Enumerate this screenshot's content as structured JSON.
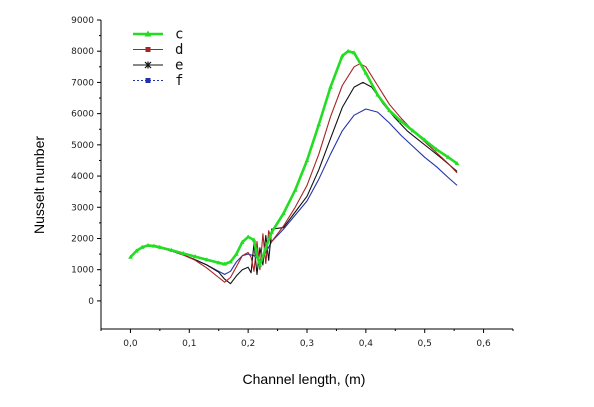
{
  "chart_data": {
    "type": "line",
    "title": "",
    "xlabel": "Channel length, (m)",
    "ylabel": "Nusselt number",
    "xlim": [
      -0.05,
      0.65
    ],
    "ylim": [
      -900,
      9000
    ],
    "x_ticks": [
      {
        "value": 0.0,
        "label": "0,0"
      },
      {
        "value": 0.1,
        "label": "0,1"
      },
      {
        "value": 0.2,
        "label": "0,2"
      },
      {
        "value": 0.3,
        "label": "0,3"
      },
      {
        "value": 0.4,
        "label": "0,4"
      },
      {
        "value": 0.5,
        "label": "0,5"
      },
      {
        "value": 0.6,
        "label": "0,6"
      }
    ],
    "y_ticks": [
      {
        "value": 0,
        "label": "0"
      },
      {
        "value": 1000,
        "label": "1000"
      },
      {
        "value": 2000,
        "label": "2000"
      },
      {
        "value": 3000,
        "label": "3000"
      },
      {
        "value": 4000,
        "label": "4000"
      },
      {
        "value": 5000,
        "label": "5000"
      },
      {
        "value": 6000,
        "label": "6000"
      },
      {
        "value": 7000,
        "label": "7000"
      },
      {
        "value": 8000,
        "label": "8000"
      },
      {
        "value": 9000,
        "label": "9000"
      }
    ],
    "grid": false,
    "legend_position": "top-left",
    "series": [
      {
        "name": "c",
        "color": "#22dd22",
        "marker": "triangle",
        "points": [
          [
            0.0,
            1400
          ],
          [
            0.01,
            1600
          ],
          [
            0.02,
            1720
          ],
          [
            0.03,
            1780
          ],
          [
            0.04,
            1760
          ],
          [
            0.05,
            1720
          ],
          [
            0.07,
            1620
          ],
          [
            0.09,
            1520
          ],
          [
            0.11,
            1420
          ],
          [
            0.13,
            1320
          ],
          [
            0.15,
            1220
          ],
          [
            0.16,
            1180
          ],
          [
            0.17,
            1250
          ],
          [
            0.18,
            1500
          ],
          [
            0.19,
            1880
          ],
          [
            0.2,
            2050
          ],
          [
            0.21,
            1950
          ],
          [
            0.215,
            1450
          ],
          [
            0.22,
            1150
          ],
          [
            0.23,
            1700
          ],
          [
            0.24,
            2200
          ],
          [
            0.26,
            2800
          ],
          [
            0.28,
            3550
          ],
          [
            0.3,
            4500
          ],
          [
            0.32,
            5650
          ],
          [
            0.34,
            6850
          ],
          [
            0.36,
            7850
          ],
          [
            0.37,
            8000
          ],
          [
            0.38,
            7950
          ],
          [
            0.4,
            7300
          ],
          [
            0.42,
            6600
          ],
          [
            0.44,
            6100
          ],
          [
            0.46,
            5750
          ],
          [
            0.48,
            5450
          ],
          [
            0.5,
            5150
          ],
          [
            0.52,
            4850
          ],
          [
            0.54,
            4600
          ],
          [
            0.555,
            4400
          ]
        ]
      },
      {
        "name": "d",
        "color": "#aa2222",
        "marker": "square",
        "points": [
          [
            0.0,
            1400
          ],
          [
            0.01,
            1600
          ],
          [
            0.02,
            1720
          ],
          [
            0.03,
            1760
          ],
          [
            0.04,
            1740
          ],
          [
            0.05,
            1700
          ],
          [
            0.07,
            1600
          ],
          [
            0.09,
            1470
          ],
          [
            0.11,
            1300
          ],
          [
            0.13,
            1050
          ],
          [
            0.15,
            750
          ],
          [
            0.16,
            600
          ],
          [
            0.17,
            750
          ],
          [
            0.18,
            1100
          ],
          [
            0.19,
            1450
          ],
          [
            0.2,
            1550
          ],
          [
            0.205,
            1400
          ],
          [
            0.21,
            950
          ],
          [
            0.215,
            1900
          ],
          [
            0.22,
            1000
          ],
          [
            0.225,
            2150
          ],
          [
            0.23,
            1200
          ],
          [
            0.235,
            2250
          ],
          [
            0.24,
            1900
          ],
          [
            0.26,
            2400
          ],
          [
            0.28,
            3000
          ],
          [
            0.3,
            3700
          ],
          [
            0.32,
            4700
          ],
          [
            0.34,
            5900
          ],
          [
            0.36,
            6900
          ],
          [
            0.38,
            7500
          ],
          [
            0.39,
            7600
          ],
          [
            0.4,
            7500
          ],
          [
            0.42,
            6900
          ],
          [
            0.44,
            6300
          ],
          [
            0.46,
            5850
          ],
          [
            0.48,
            5450
          ],
          [
            0.5,
            5100
          ],
          [
            0.52,
            4750
          ],
          [
            0.54,
            4400
          ],
          [
            0.555,
            4100
          ]
        ]
      },
      {
        "name": "e",
        "color": "#111111",
        "marker": "star",
        "points": [
          [
            0.0,
            1400
          ],
          [
            0.01,
            1600
          ],
          [
            0.02,
            1720
          ],
          [
            0.03,
            1760
          ],
          [
            0.04,
            1740
          ],
          [
            0.05,
            1700
          ],
          [
            0.07,
            1600
          ],
          [
            0.09,
            1470
          ],
          [
            0.11,
            1320
          ],
          [
            0.13,
            1150
          ],
          [
            0.15,
            920
          ],
          [
            0.16,
            700
          ],
          [
            0.17,
            550
          ],
          [
            0.18,
            800
          ],
          [
            0.19,
            1000
          ],
          [
            0.2,
            1080
          ],
          [
            0.205,
            900
          ],
          [
            0.21,
            1850
          ],
          [
            0.215,
            850
          ],
          [
            0.22,
            1700
          ],
          [
            0.225,
            1150
          ],
          [
            0.23,
            2100
          ],
          [
            0.235,
            1300
          ],
          [
            0.24,
            2300
          ],
          [
            0.26,
            2350
          ],
          [
            0.28,
            2850
          ],
          [
            0.3,
            3350
          ],
          [
            0.32,
            4200
          ],
          [
            0.34,
            5200
          ],
          [
            0.36,
            6200
          ],
          [
            0.38,
            6850
          ],
          [
            0.395,
            7000
          ],
          [
            0.41,
            6850
          ],
          [
            0.43,
            6300
          ],
          [
            0.45,
            5850
          ],
          [
            0.47,
            5450
          ],
          [
            0.49,
            5150
          ],
          [
            0.51,
            4850
          ],
          [
            0.53,
            4550
          ],
          [
            0.555,
            4150
          ]
        ]
      },
      {
        "name": "f",
        "color": "#2233aa",
        "marker": "square",
        "points": [
          [
            0.0,
            1400
          ],
          [
            0.01,
            1600
          ],
          [
            0.02,
            1720
          ],
          [
            0.03,
            1760
          ],
          [
            0.04,
            1740
          ],
          [
            0.05,
            1700
          ],
          [
            0.07,
            1600
          ],
          [
            0.09,
            1470
          ],
          [
            0.11,
            1320
          ],
          [
            0.13,
            1150
          ],
          [
            0.15,
            950
          ],
          [
            0.16,
            850
          ],
          [
            0.17,
            950
          ],
          [
            0.18,
            1250
          ],
          [
            0.19,
            1450
          ],
          [
            0.2,
            1500
          ],
          [
            0.21,
            1450
          ],
          [
            0.22,
            1300
          ],
          [
            0.23,
            1550
          ],
          [
            0.24,
            1900
          ],
          [
            0.26,
            2300
          ],
          [
            0.28,
            2750
          ],
          [
            0.3,
            3200
          ],
          [
            0.32,
            3900
          ],
          [
            0.34,
            4700
          ],
          [
            0.36,
            5450
          ],
          [
            0.38,
            5950
          ],
          [
            0.4,
            6150
          ],
          [
            0.42,
            6050
          ],
          [
            0.44,
            5700
          ],
          [
            0.46,
            5300
          ],
          [
            0.48,
            4950
          ],
          [
            0.5,
            4600
          ],
          [
            0.52,
            4300
          ],
          [
            0.54,
            3950
          ],
          [
            0.555,
            3700
          ]
        ]
      }
    ]
  }
}
